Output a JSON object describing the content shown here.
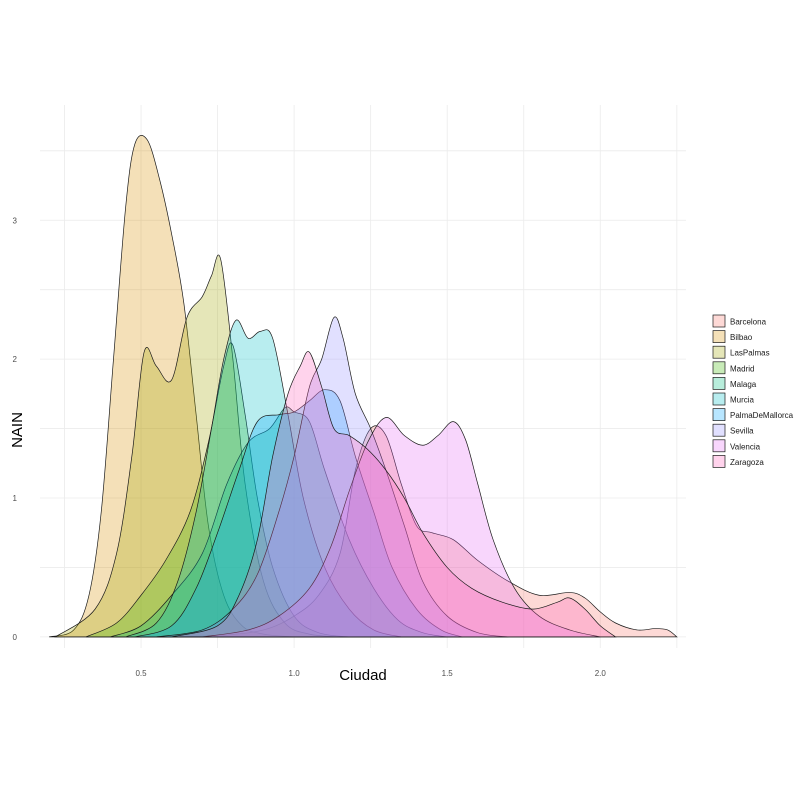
{
  "chart_data": {
    "type": "area",
    "title": "",
    "xlabel": "Ciudad",
    "ylabel": "NAIN",
    "xlim": [
      0.17,
      2.28
    ],
    "ylim": [
      -0.08,
      3.83
    ],
    "x_ticks": [
      0.5,
      1.0,
      1.5,
      2.0
    ],
    "x_tick_labels": [
      "0.5",
      "1.0",
      "1.5",
      "2.0"
    ],
    "x_minor_ticks": [
      0.25,
      0.75,
      1.25,
      1.75,
      2.25
    ],
    "y_ticks": [
      0,
      1,
      2,
      3
    ],
    "y_tick_labels": [
      "0",
      "1",
      "2",
      "3"
    ],
    "y_minor_ticks": [
      0.5,
      1.5,
      2.5,
      3.5
    ],
    "grid": true,
    "legend_position": "right",
    "series": [
      {
        "name": "Barcelona",
        "color": "#F8766D",
        "points": [
          [
            0.55,
            0
          ],
          [
            0.75,
            0.01
          ],
          [
            0.9,
            0.05
          ],
          [
            1.0,
            0.15
          ],
          [
            1.08,
            0.3
          ],
          [
            1.15,
            0.6
          ],
          [
            1.2,
            1.2
          ],
          [
            1.25,
            1.5
          ],
          [
            1.3,
            1.45
          ],
          [
            1.35,
            1.1
          ],
          [
            1.4,
            0.8
          ],
          [
            1.45,
            0.75
          ],
          [
            1.52,
            0.7
          ],
          [
            1.6,
            0.55
          ],
          [
            1.7,
            0.4
          ],
          [
            1.8,
            0.3
          ],
          [
            1.9,
            0.32
          ],
          [
            1.95,
            0.28
          ],
          [
            2.0,
            0.18
          ],
          [
            2.05,
            0.1
          ],
          [
            2.12,
            0.05
          ],
          [
            2.18,
            0.06
          ],
          [
            2.22,
            0.05
          ],
          [
            2.25,
            0
          ]
        ]
      },
      {
        "name": "Bilbao",
        "color": "#D89000",
        "points": [
          [
            0.2,
            0
          ],
          [
            0.28,
            0.05
          ],
          [
            0.33,
            0.3
          ],
          [
            0.37,
            0.9
          ],
          [
            0.41,
            2.0
          ],
          [
            0.45,
            3.1
          ],
          [
            0.48,
            3.55
          ],
          [
            0.52,
            3.58
          ],
          [
            0.56,
            3.3
          ],
          [
            0.6,
            2.9
          ],
          [
            0.64,
            2.4
          ],
          [
            0.68,
            1.6
          ],
          [
            0.72,
            0.8
          ],
          [
            0.77,
            0.3
          ],
          [
            0.83,
            0.08
          ],
          [
            0.9,
            0.02
          ],
          [
            1.0,
            0
          ]
        ]
      },
      {
        "name": "LasPalmas",
        "color": "#A3A500",
        "points": [
          [
            0.22,
            0
          ],
          [
            0.35,
            0.2
          ],
          [
            0.42,
            0.6
          ],
          [
            0.47,
            1.3
          ],
          [
            0.51,
            2.05
          ],
          [
            0.55,
            1.95
          ],
          [
            0.6,
            1.85
          ],
          [
            0.65,
            2.3
          ],
          [
            0.7,
            2.45
          ],
          [
            0.73,
            2.6
          ],
          [
            0.76,
            2.72
          ],
          [
            0.8,
            2.0
          ],
          [
            0.84,
            1.1
          ],
          [
            0.9,
            0.4
          ],
          [
            0.97,
            0.1
          ],
          [
            1.05,
            0.02
          ],
          [
            1.15,
            0
          ]
        ]
      },
      {
        "name": "Madrid",
        "color": "#39B600",
        "points": [
          [
            0.32,
            0
          ],
          [
            0.42,
            0.1
          ],
          [
            0.5,
            0.3
          ],
          [
            0.58,
            0.55
          ],
          [
            0.66,
            0.9
          ],
          [
            0.72,
            1.4
          ],
          [
            0.77,
            1.95
          ],
          [
            0.8,
            2.1
          ],
          [
            0.84,
            1.6
          ],
          [
            0.88,
            1.0
          ],
          [
            0.93,
            0.5
          ],
          [
            1.0,
            0.15
          ],
          [
            1.08,
            0.03
          ],
          [
            1.18,
            0
          ]
        ]
      },
      {
        "name": "Malaga",
        "color": "#00BF7D",
        "points": [
          [
            0.4,
            0
          ],
          [
            0.5,
            0.08
          ],
          [
            0.6,
            0.3
          ],
          [
            0.7,
            0.6
          ],
          [
            0.78,
            1.1
          ],
          [
            0.85,
            1.4
          ],
          [
            0.92,
            1.5
          ],
          [
            0.97,
            1.65
          ],
          [
            1.0,
            1.62
          ],
          [
            1.05,
            1.55
          ],
          [
            1.1,
            1.2
          ],
          [
            1.18,
            0.7
          ],
          [
            1.26,
            0.35
          ],
          [
            1.34,
            0.12
          ],
          [
            1.42,
            0.03
          ],
          [
            1.5,
            0
          ]
        ]
      },
      {
        "name": "Murcia",
        "color": "#00BFC4",
        "points": [
          [
            0.45,
            0
          ],
          [
            0.55,
            0.1
          ],
          [
            0.62,
            0.4
          ],
          [
            0.68,
            0.9
          ],
          [
            0.73,
            1.5
          ],
          [
            0.77,
            2.0
          ],
          [
            0.81,
            2.28
          ],
          [
            0.85,
            2.15
          ],
          [
            0.89,
            2.2
          ],
          [
            0.93,
            2.15
          ],
          [
            0.98,
            1.6
          ],
          [
            1.03,
            1.0
          ],
          [
            1.1,
            0.5
          ],
          [
            1.18,
            0.2
          ],
          [
            1.26,
            0.05
          ],
          [
            1.35,
            0
          ]
        ]
      },
      {
        "name": "PalmaDeMallorca",
        "color": "#00A5FF",
        "points": [
          [
            0.48,
            0
          ],
          [
            0.6,
            0.08
          ],
          [
            0.68,
            0.35
          ],
          [
            0.75,
            0.75
          ],
          [
            0.82,
            1.2
          ],
          [
            0.88,
            1.55
          ],
          [
            0.95,
            1.6
          ],
          [
            1.0,
            1.62
          ],
          [
            1.05,
            1.7
          ],
          [
            1.1,
            1.78
          ],
          [
            1.15,
            1.7
          ],
          [
            1.2,
            1.3
          ],
          [
            1.26,
            0.9
          ],
          [
            1.32,
            0.5
          ],
          [
            1.4,
            0.2
          ],
          [
            1.48,
            0.05
          ],
          [
            1.55,
            0
          ]
        ]
      },
      {
        "name": "Sevilla",
        "color": "#9590FF",
        "points": [
          [
            0.55,
            0
          ],
          [
            0.7,
            0.05
          ],
          [
            0.8,
            0.2
          ],
          [
            0.88,
            0.45
          ],
          [
            0.95,
            0.9
          ],
          [
            1.0,
            1.3
          ],
          [
            1.05,
            1.8
          ],
          [
            1.09,
            2.0
          ],
          [
            1.13,
            2.3
          ],
          [
            1.16,
            2.15
          ],
          [
            1.2,
            1.75
          ],
          [
            1.25,
            1.5
          ],
          [
            1.3,
            1.2
          ],
          [
            1.36,
            0.8
          ],
          [
            1.42,
            0.4
          ],
          [
            1.5,
            0.15
          ],
          [
            1.6,
            0.03
          ],
          [
            1.7,
            0
          ]
        ]
      },
      {
        "name": "Valencia",
        "color": "#E76BF3",
        "points": [
          [
            0.7,
            0
          ],
          [
            0.85,
            0.05
          ],
          [
            0.95,
            0.15
          ],
          [
            1.05,
            0.35
          ],
          [
            1.12,
            0.65
          ],
          [
            1.18,
            1.05
          ],
          [
            1.24,
            1.4
          ],
          [
            1.3,
            1.58
          ],
          [
            1.36,
            1.45
          ],
          [
            1.42,
            1.38
          ],
          [
            1.47,
            1.45
          ],
          [
            1.52,
            1.55
          ],
          [
            1.56,
            1.42
          ],
          [
            1.6,
            1.1
          ],
          [
            1.65,
            0.7
          ],
          [
            1.72,
            0.35
          ],
          [
            1.8,
            0.15
          ],
          [
            1.9,
            0.05
          ],
          [
            2.0,
            0
          ]
        ]
      },
      {
        "name": "Zaragoza",
        "color": "#FF62BC",
        "points": [
          [
            0.6,
            0
          ],
          [
            0.75,
            0.08
          ],
          [
            0.82,
            0.3
          ],
          [
            0.88,
            0.7
          ],
          [
            0.93,
            1.3
          ],
          [
            0.98,
            1.75
          ],
          [
            1.02,
            1.95
          ],
          [
            1.05,
            2.05
          ],
          [
            1.09,
            1.8
          ],
          [
            1.13,
            1.5
          ],
          [
            1.18,
            1.45
          ],
          [
            1.24,
            1.35
          ],
          [
            1.3,
            1.2
          ],
          [
            1.36,
            1.0
          ],
          [
            1.42,
            0.75
          ],
          [
            1.5,
            0.5
          ],
          [
            1.58,
            0.35
          ],
          [
            1.68,
            0.25
          ],
          [
            1.78,
            0.2
          ],
          [
            1.86,
            0.25
          ],
          [
            1.9,
            0.28
          ],
          [
            1.95,
            0.2
          ],
          [
            2.0,
            0.08
          ],
          [
            2.05,
            0
          ]
        ]
      }
    ]
  }
}
